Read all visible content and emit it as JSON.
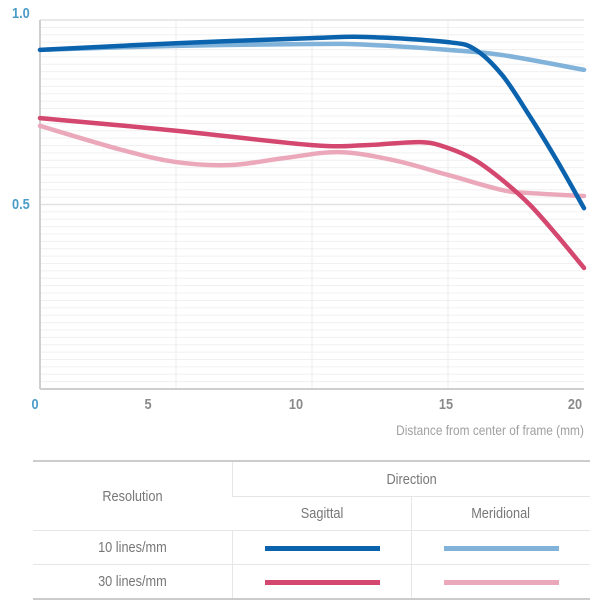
{
  "chart_data": {
    "type": "line",
    "xlabel": "Distance from center of frame (mm)",
    "ylabel": "",
    "xlim": [
      0,
      20
    ],
    "ylim": [
      0,
      1.0
    ],
    "xticks": [
      "0",
      "5",
      "10",
      "15",
      "20"
    ],
    "yticks": [
      "0.5",
      "1.0"
    ],
    "grid": true,
    "series": [
      {
        "resolution": "10 lines/mm",
        "direction": "Sagittal",
        "color": "#0b63ae",
        "x": [
          0,
          5,
          10,
          12,
          15,
          16,
          17,
          18,
          19,
          20
        ],
        "y": [
          0.919,
          0.937,
          0.951,
          0.954,
          0.94,
          0.92,
          0.85,
          0.74,
          0.62,
          0.49
        ]
      },
      {
        "resolution": "10 lines/mm",
        "direction": "Meridional",
        "color": "#80b2da",
        "x": [
          0,
          5,
          10,
          12,
          15,
          17,
          20
        ],
        "y": [
          0.919,
          0.93,
          0.935,
          0.933,
          0.919,
          0.905,
          0.865
        ]
      },
      {
        "resolution": "30 lines/mm",
        "direction": "Sagittal",
        "color": "#d4486f",
        "x": [
          0,
          5,
          10,
          12,
          14,
          15,
          16,
          17,
          18,
          19,
          20
        ],
        "y": [
          0.734,
          0.7,
          0.661,
          0.661,
          0.669,
          0.653,
          0.62,
          0.566,
          0.5,
          0.417,
          0.328
        ]
      },
      {
        "resolution": "30 lines/mm",
        "direction": "Meridional",
        "color": "#eba8ba",
        "x": [
          0,
          3,
          5,
          7,
          9,
          11,
          13,
          15,
          17,
          18,
          20
        ],
        "y": [
          0.713,
          0.648,
          0.615,
          0.607,
          0.626,
          0.642,
          0.62,
          0.58,
          0.539,
          0.531,
          0.523
        ]
      }
    ]
  },
  "legend_table": {
    "resolution_header": "Resolution",
    "direction_header": "Direction",
    "sagittal": "Sagittal",
    "meridional": "Meridional",
    "rows": [
      "10 lines/mm",
      "30 lines/mm"
    ]
  }
}
